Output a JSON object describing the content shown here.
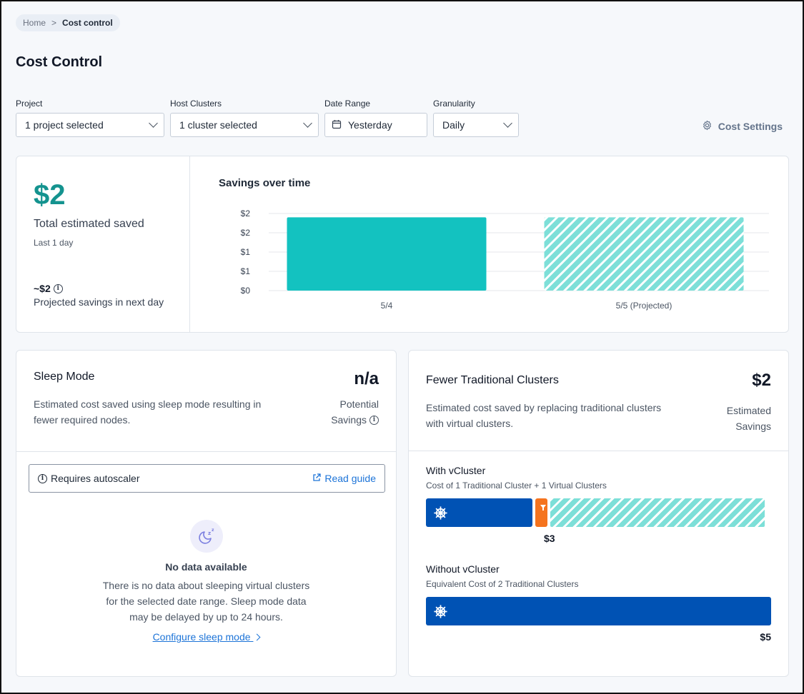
{
  "breadcrumb": {
    "home": "Home",
    "separator": ">",
    "current": "Cost control"
  },
  "page_title": "Cost Control",
  "filters": {
    "project": {
      "label": "Project",
      "value": "1 project selected"
    },
    "host_clusters": {
      "label": "Host Clusters",
      "value": "1 cluster selected"
    },
    "date_range": {
      "label": "Date Range",
      "value": "Yesterday"
    },
    "granularity": {
      "label": "Granularity",
      "value": "Daily"
    }
  },
  "cost_settings_label": "Cost Settings",
  "summary": {
    "total_value": "$2",
    "total_label": "Total estimated saved",
    "period_label": "Last 1 day",
    "projected_value": "~$2",
    "projected_label": "Projected savings in next day"
  },
  "chart_data": {
    "type": "bar",
    "title": "Savings over time",
    "categories": [
      "5/4",
      "5/5 (Projected)"
    ],
    "values": [
      1.9,
      1.9
    ],
    "series": [
      {
        "values": [
          1.9,
          1.9
        ]
      }
    ],
    "projected": [
      false,
      true
    ],
    "y_tick_labels": [
      "$2",
      "$2",
      "$1",
      "$1",
      "$0"
    ],
    "ylim": [
      0,
      2
    ],
    "grid": true,
    "colors": {
      "bar": "#13c2c0",
      "hatch": "#7ddfd8"
    }
  },
  "sleep_mode": {
    "title": "Sleep Mode",
    "description_line1": "Estimated cost saved using sleep mode resulting in",
    "description_line2": "fewer required nodes.",
    "metric_value": "n/a",
    "metric_label_line1": "Potential",
    "metric_label_line2": "Savings",
    "autoscaler_text": "Requires autoscaler",
    "read_guide": "Read guide",
    "empty_title": "No data available",
    "empty_desc_line1": "There is no data about sleeping virtual clusters",
    "empty_desc_line2": "for the selected date range. Sleep mode data",
    "empty_desc_line3": "may be delayed by up to 24 hours.",
    "configure_link": "Configure sleep mode"
  },
  "traditional": {
    "title": "Fewer Traditional Clusters",
    "description_line1": "Estimated cost saved by replacing traditional clusters",
    "description_line2": "with virtual clusters.",
    "metric_value": "$2",
    "metric_label_line1": "Estimated",
    "metric_label_line2": "Savings",
    "with_title": "With vCluster",
    "with_sub": "Cost of 1 Traditional Cluster + 1 Virtual Clusters",
    "with_value": "$3",
    "without_title": "Without vCluster",
    "without_sub": "Equivalent Cost of 2 Traditional Clusters",
    "without_value": "$5"
  },
  "colors": {
    "accent": "#14938f",
    "link": "#1d74d8",
    "cluster_blue": "#0052b4",
    "vcluster_orange": "#f5731e"
  }
}
